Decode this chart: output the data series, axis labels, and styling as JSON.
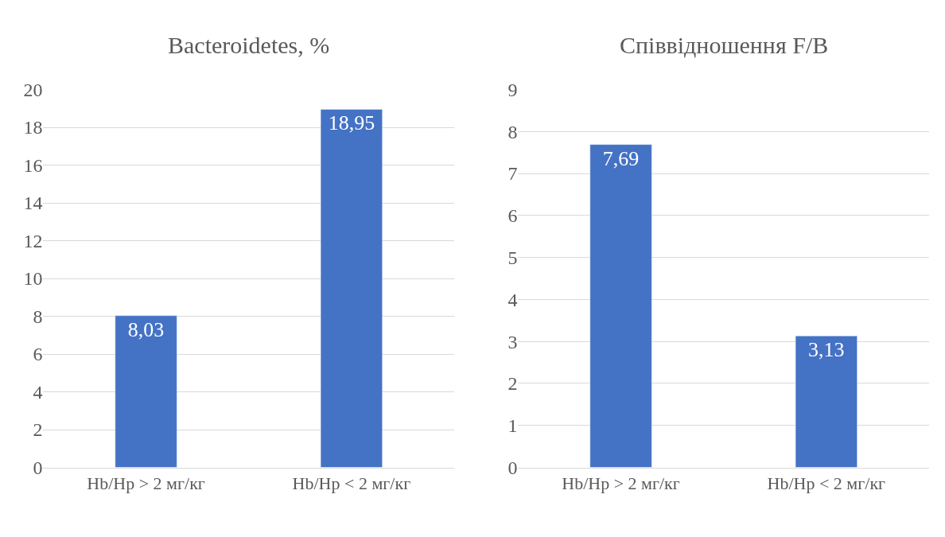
{
  "chart_data": [
    {
      "type": "bar",
      "title": "Bacteroidetes, %",
      "categories": [
        "Hb/Hp > 2 мг/кг",
        "Hb/Hp < 2 мг/кг"
      ],
      "values": [
        8.03,
        18.95
      ],
      "value_labels": [
        "8,03",
        "18,95"
      ],
      "color": "#4472c4",
      "ylim": [
        0,
        20
      ],
      "yticks": [
        0,
        2,
        4,
        6,
        8,
        10,
        12,
        14,
        16,
        18,
        20
      ],
      "grid": "y"
    },
    {
      "type": "bar",
      "title": "Співвідношення F/B",
      "categories": [
        "Hb/Hp > 2 мг/кг",
        "Hb/Hp < 2 мг/кг"
      ],
      "values": [
        7.69,
        3.13
      ],
      "value_labels": [
        "7,69",
        "3,13"
      ],
      "color": "#4472c4",
      "ylim": [
        0,
        9
      ],
      "yticks": [
        0,
        1,
        2,
        3,
        4,
        5,
        6,
        7,
        8,
        9
      ],
      "grid": "y"
    }
  ]
}
